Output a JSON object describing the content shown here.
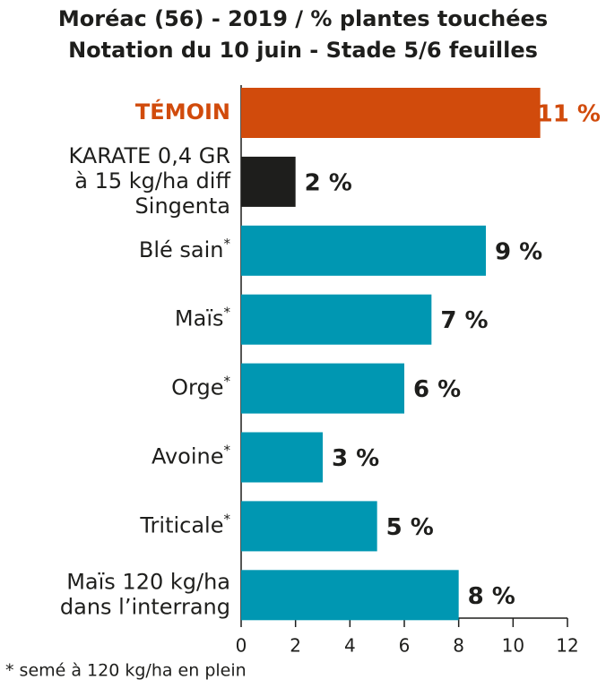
{
  "chart_data": {
    "type": "bar",
    "orientation": "horizontal",
    "title": "Moréac (56) - 2019 / % plantes touchées",
    "subtitle": "Notation du 10 juin - Stade 5/6 feuilles",
    "categories": [
      "TÉMOIN",
      "KARATE 0,4 GR\nà 15 kg/ha diff\nSingenta",
      "Blé sain*",
      "Maïs*",
      "Orge*",
      "Avoine*",
      "Triticale*",
      "Maïs 120 kg/ha\ndans l’interrang"
    ],
    "values": [
      11,
      2,
      9,
      7,
      6,
      3,
      5,
      8
    ],
    "value_labels": [
      "11 %",
      "2 %",
      "9 %",
      "7 %",
      "6 %",
      "3 %",
      "5 %",
      "8 %"
    ],
    "colors": [
      "#d14b0c",
      "#1e1e1c",
      "#0097b2",
      "#0097b2",
      "#0097b2",
      "#0097b2",
      "#0097b2",
      "#0097b2"
    ],
    "xlim": [
      0,
      12
    ],
    "xticks": [
      0,
      2,
      4,
      6,
      8,
      10,
      12
    ],
    "footnote": "* semé à 120 kg/ha en plein"
  }
}
